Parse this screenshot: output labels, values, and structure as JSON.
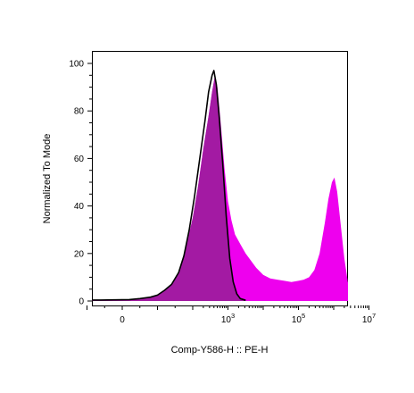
{
  "chart_data": {
    "type": "area",
    "title": "",
    "xlabel": "Comp-Y586-H :: PE-H",
    "ylabel": "Normalized To Mode",
    "x_scale": "biexponential",
    "ylim": [
      0,
      100
    ],
    "y_ticks": [
      "0",
      "20",
      "40",
      "60",
      "80",
      "100"
    ],
    "x_ticks": [
      {
        "label": "0",
        "base": "0",
        "exp": ""
      },
      {
        "label": "10^3",
        "base": "10",
        "exp": "3"
      },
      {
        "label": "10^5",
        "base": "10",
        "exp": "5"
      },
      {
        "label": "10^7",
        "base": "10",
        "exp": "7"
      }
    ],
    "colors": {
      "filled": "#ee00ee",
      "control": "#000000",
      "overlap": "#a31aa3"
    },
    "series": [
      {
        "style": "filled",
        "points": [
          [
            -1.2,
            20
          ],
          [
            -1.18,
            6
          ],
          [
            -1.15,
            1.2
          ],
          [
            -1.0,
            0.5
          ],
          [
            -0.6,
            0.5
          ],
          [
            -0.2,
            0.5
          ],
          [
            0.2,
            0.5
          ],
          [
            0.6,
            1.0
          ],
          [
            1.0,
            2.5
          ],
          [
            1.2,
            4.5
          ],
          [
            1.4,
            7
          ],
          [
            1.6,
            12
          ],
          [
            1.8,
            22
          ],
          [
            2.0,
            35
          ],
          [
            2.15,
            48
          ],
          [
            2.3,
            64
          ],
          [
            2.45,
            78
          ],
          [
            2.55,
            88
          ],
          [
            2.62,
            94
          ],
          [
            2.7,
            90
          ],
          [
            2.8,
            74
          ],
          [
            2.9,
            56
          ],
          [
            3.0,
            42
          ],
          [
            3.1,
            34
          ],
          [
            3.2,
            28
          ],
          [
            3.35,
            24
          ],
          [
            3.5,
            20
          ],
          [
            3.65,
            17
          ],
          [
            3.8,
            14
          ],
          [
            4.0,
            11
          ],
          [
            4.2,
            9.5
          ],
          [
            4.4,
            9
          ],
          [
            4.6,
            8.5
          ],
          [
            4.8,
            8
          ],
          [
            5.0,
            8.5
          ],
          [
            5.15,
            9
          ],
          [
            5.3,
            10
          ],
          [
            5.45,
            13
          ],
          [
            5.6,
            20
          ],
          [
            5.75,
            33
          ],
          [
            5.85,
            43
          ],
          [
            5.95,
            50
          ],
          [
            6.02,
            52
          ],
          [
            6.1,
            46
          ],
          [
            6.2,
            32
          ],
          [
            6.3,
            18
          ],
          [
            6.4,
            8
          ],
          [
            6.5,
            3
          ],
          [
            6.6,
            1
          ],
          [
            6.75,
            0.3
          ]
        ]
      },
      {
        "style": "control",
        "points": [
          [
            -1.2,
            16
          ],
          [
            -1.18,
            5
          ],
          [
            -1.15,
            1.0
          ],
          [
            -1.0,
            0.4
          ],
          [
            -0.6,
            0.4
          ],
          [
            -0.2,
            0.5
          ],
          [
            0.2,
            0.6
          ],
          [
            0.5,
            1.0
          ],
          [
            0.8,
            1.6
          ],
          [
            1.0,
            2.5
          ],
          [
            1.2,
            4.5
          ],
          [
            1.4,
            7
          ],
          [
            1.6,
            12
          ],
          [
            1.75,
            19
          ],
          [
            1.9,
            30
          ],
          [
            2.05,
            44
          ],
          [
            2.2,
            60
          ],
          [
            2.35,
            76
          ],
          [
            2.45,
            88
          ],
          [
            2.55,
            95
          ],
          [
            2.6,
            97
          ],
          [
            2.67,
            91
          ],
          [
            2.75,
            78
          ],
          [
            2.85,
            58
          ],
          [
            2.95,
            36
          ],
          [
            3.05,
            18
          ],
          [
            3.15,
            8
          ],
          [
            3.25,
            3
          ],
          [
            3.35,
            1
          ],
          [
            3.5,
            0.3
          ]
        ]
      }
    ]
  }
}
